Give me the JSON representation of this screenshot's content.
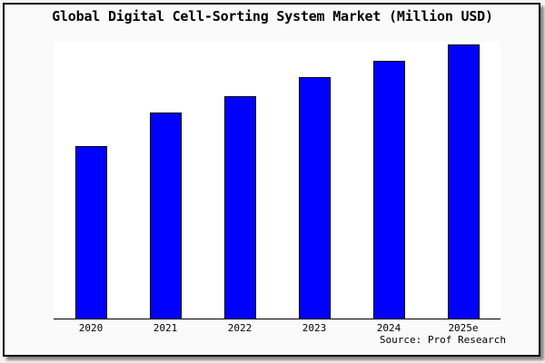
{
  "title": "Global Digital Cell-Sorting System Market (Million USD)",
  "source": "Source: Prof Research",
  "colors": {
    "bar_fill": "#0000ff",
    "bar_edge": "#000000",
    "plot_background": "#ffffff",
    "figure_background": "#fafafa",
    "frame_border": "#000000"
  },
  "chart_data": {
    "type": "bar",
    "title": "Global Digital Cell-Sorting System Market (Million USD)",
    "categories": [
      "2020",
      "2021",
      "2022",
      "2023",
      "2024",
      "2025e"
    ],
    "values": [
      63,
      75,
      81,
      88,
      94,
      100
    ],
    "values_note": "No y-axis tick labels are shown in the figure; values are estimated relative bar heights with 2025e = 100.",
    "xlabel": "",
    "ylabel": "",
    "grid": false,
    "legend_position": "none",
    "annotations": [
      "Source: Prof Research"
    ]
  }
}
